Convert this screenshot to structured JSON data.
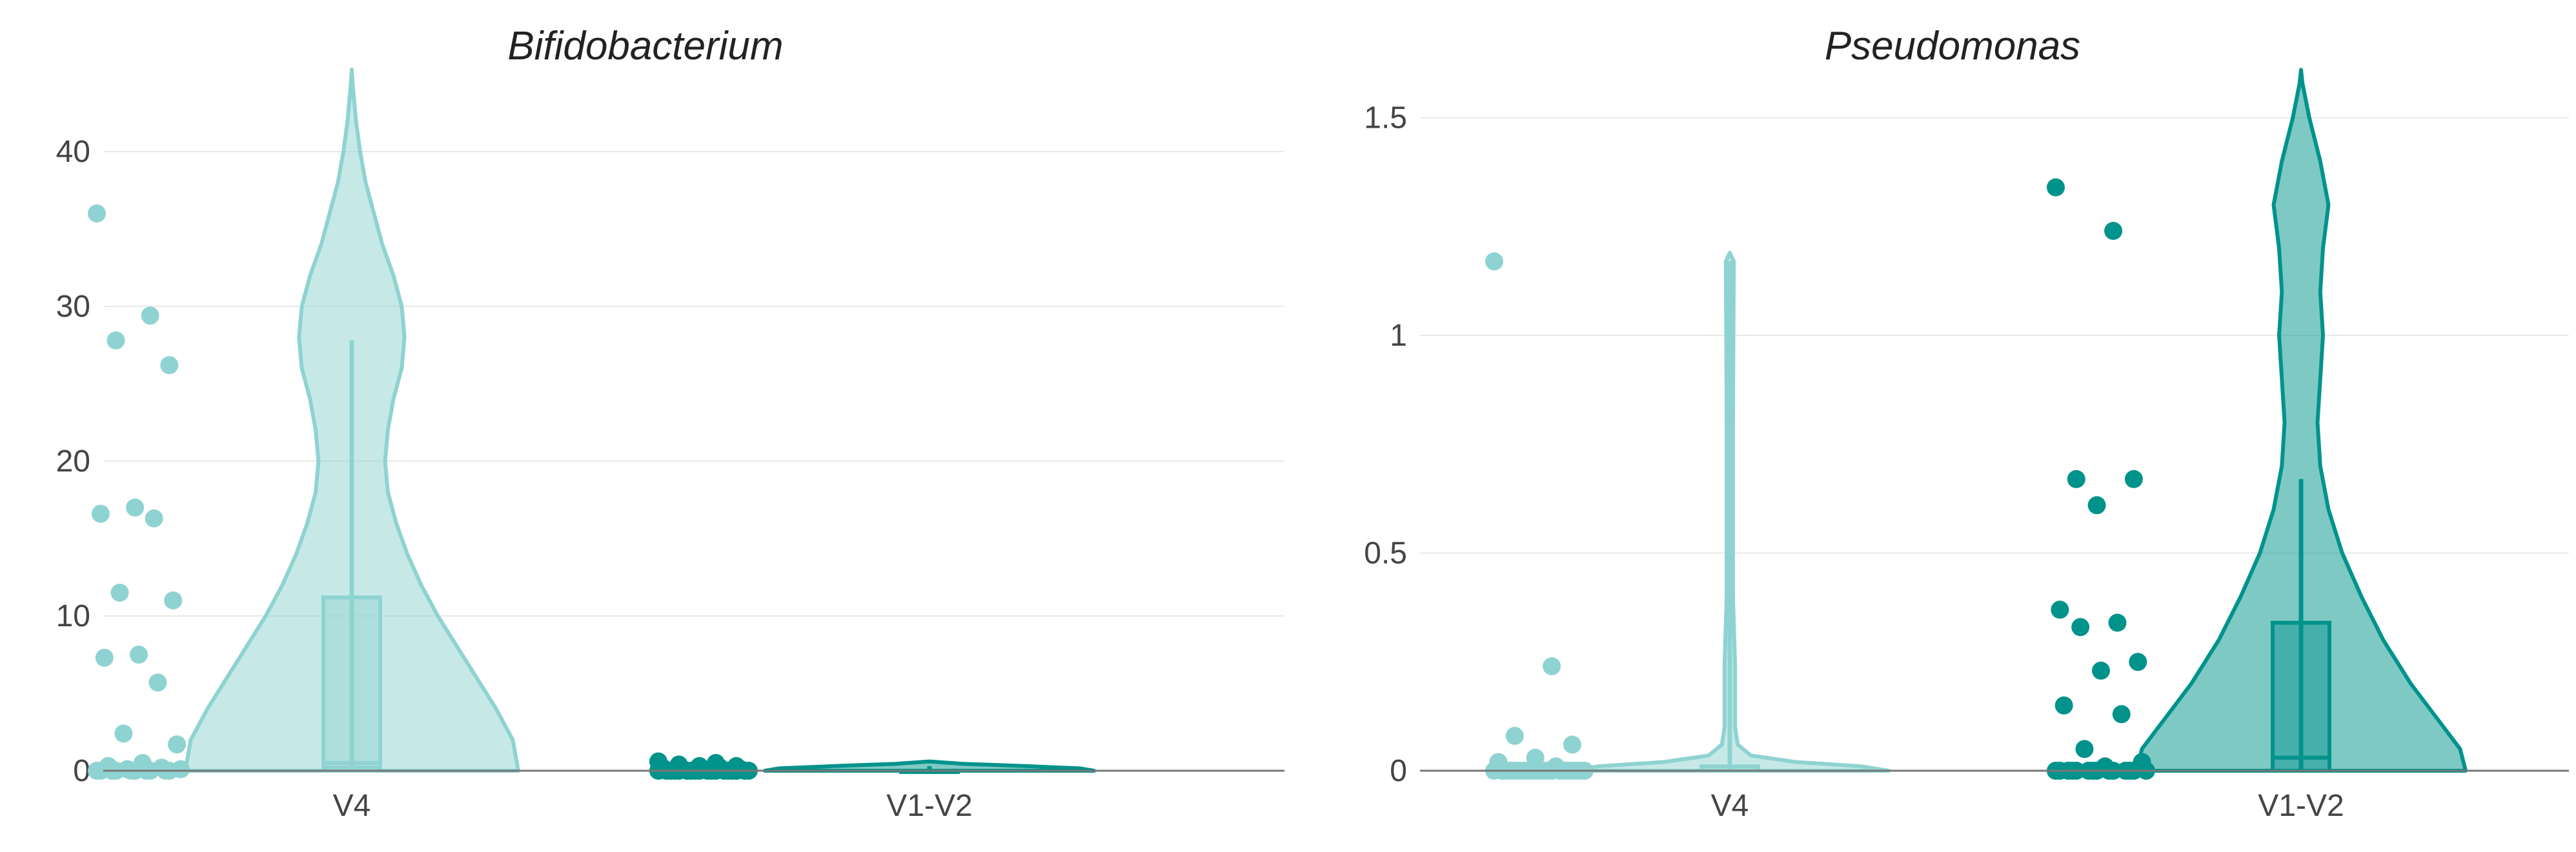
{
  "chart_data": [
    {
      "type": "violin",
      "title": "Bifidobacterium",
      "categories": [
        "V4",
        "V1-V2"
      ],
      "ylim": [
        0,
        45
      ],
      "yticks": [
        0,
        10,
        20,
        30,
        40
      ],
      "ytick_labels": [
        "0",
        "10",
        "20",
        "30",
        "40"
      ],
      "grid": true,
      "series": [
        {
          "category": "V4",
          "color": "#8ed3d1",
          "points": [
            36,
            29.4,
            27.8,
            26.2,
            17,
            16.6,
            16.3,
            11.5,
            11,
            7.5,
            7.3,
            5.7,
            2.4,
            1.7,
            0.5,
            0.3,
            0.2,
            0.1,
            0.1,
            0,
            0,
            0,
            0,
            0,
            0,
            0,
            0,
            0,
            0
          ],
          "box": {
            "q1": 0.2,
            "median": 0.5,
            "q3": 11.2,
            "whisker_low": 0,
            "whisker_high": 27.8
          },
          "density": [
            [
              0,
              0.6
            ],
            [
              2,
              0.58
            ],
            [
              4,
              0.52
            ],
            [
              6,
              0.45
            ],
            [
              8,
              0.38
            ],
            [
              10,
              0.31
            ],
            [
              12,
              0.25
            ],
            [
              14,
              0.2
            ],
            [
              16,
              0.16
            ],
            [
              18,
              0.13
            ],
            [
              20,
              0.12
            ],
            [
              22,
              0.13
            ],
            [
              24,
              0.15
            ],
            [
              26,
              0.18
            ],
            [
              28,
              0.19
            ],
            [
              30,
              0.18
            ],
            [
              32,
              0.15
            ],
            [
              34,
              0.11
            ],
            [
              36,
              0.08
            ],
            [
              38,
              0.05
            ],
            [
              40,
              0.03
            ],
            [
              42,
              0.015
            ],
            [
              44,
              0.005
            ],
            [
              45.3,
              0
            ]
          ]
        },
        {
          "category": "V1-V2",
          "color": "#00938b",
          "points": [
            0.6,
            0.5,
            0.4,
            0.3,
            0.3,
            0.2,
            0.2,
            0.1,
            0.1,
            0.1,
            0,
            0,
            0,
            0,
            0,
            0,
            0,
            0,
            0,
            0,
            0,
            0,
            0,
            0,
            0,
            0,
            0,
            0
          ],
          "box": {
            "q1": 0,
            "median": 0,
            "q3": 0,
            "whisker_low": 0,
            "whisker_high": 0.3
          },
          "density": [
            [
              0,
              0.6
            ],
            [
              0.15,
              0.55
            ],
            [
              0.3,
              0.35
            ],
            [
              0.45,
              0.12
            ],
            [
              0.6,
              0
            ]
          ]
        }
      ]
    },
    {
      "type": "violin",
      "title": "Pseudomonas",
      "categories": [
        "V4",
        "V1-V2"
      ],
      "ylim": [
        0,
        1.6
      ],
      "yticks": [
        0,
        0.5,
        1,
        1.5
      ],
      "ytick_labels": [
        "0",
        "0.5",
        "1",
        "1.5"
      ],
      "grid": true,
      "series": [
        {
          "category": "V4",
          "color": "#8ed3d1",
          "points": [
            1.17,
            0.24,
            0.08,
            0.06,
            0.03,
            0.02,
            0.01,
            0,
            0,
            0,
            0,
            0,
            0,
            0,
            0,
            0,
            0,
            0,
            0,
            0,
            0,
            0,
            0,
            0,
            0,
            0,
            0,
            0
          ],
          "box": {
            "q1": 0,
            "median": 0,
            "q3": 0.01,
            "whisker_low": 0,
            "whisker_high": 1.17
          },
          "density": [
            [
              0,
              0.6
            ],
            [
              0.01,
              0.5
            ],
            [
              0.02,
              0.25
            ],
            [
              0.035,
              0.08
            ],
            [
              0.06,
              0.03
            ],
            [
              0.1,
              0.02
            ],
            [
              0.24,
              0.02
            ],
            [
              0.4,
              0.012
            ],
            [
              0.8,
              0.012
            ],
            [
              1.17,
              0.015
            ],
            [
              1.19,
              0
            ]
          ]
        },
        {
          "category": "V1-V2",
          "color": "#00938b",
          "points": [
            1.34,
            1.24,
            0.67,
            0.67,
            0.61,
            0.37,
            0.34,
            0.33,
            0.25,
            0.23,
            0.15,
            0.13,
            0.05,
            0.02,
            0.01,
            0,
            0,
            0,
            0,
            0,
            0,
            0,
            0,
            0,
            0,
            0,
            0,
            0,
            0
          ],
          "box": {
            "q1": 0,
            "median": 0.03,
            "q3": 0.34,
            "whisker_low": 0,
            "whisker_high": 0.67
          },
          "density": [
            [
              0,
              0.6
            ],
            [
              0.05,
              0.58
            ],
            [
              0.1,
              0.52
            ],
            [
              0.2,
              0.4
            ],
            [
              0.3,
              0.3
            ],
            [
              0.4,
              0.22
            ],
            [
              0.5,
              0.15
            ],
            [
              0.6,
              0.1
            ],
            [
              0.7,
              0.07
            ],
            [
              0.8,
              0.06
            ],
            [
              0.9,
              0.07
            ],
            [
              1.0,
              0.08
            ],
            [
              1.1,
              0.07
            ],
            [
              1.2,
              0.08
            ],
            [
              1.3,
              0.1
            ],
            [
              1.4,
              0.07
            ],
            [
              1.5,
              0.03
            ],
            [
              1.58,
              0.005
            ],
            [
              1.61,
              0
            ]
          ]
        }
      ]
    }
  ]
}
